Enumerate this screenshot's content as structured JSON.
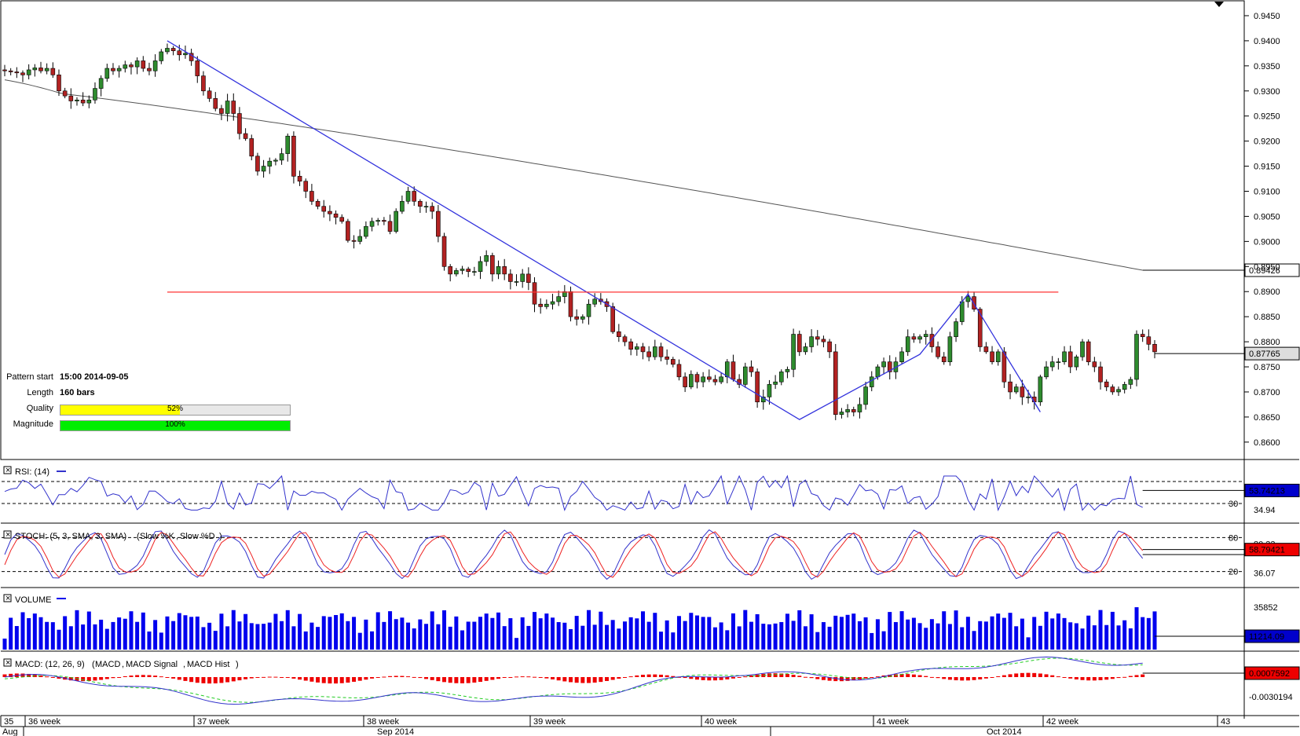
{
  "pattern": {
    "start_label": "Pattern start",
    "start_value": "15:00 2014-09-05",
    "length_label": "Length",
    "length_value": "160 bars",
    "quality_label": "Quality",
    "quality_pct": 52,
    "quality_text": "52%",
    "magnitude_label": "Magnitude",
    "magnitude_pct": 100,
    "magnitude_text": "100%"
  },
  "colors": {
    "candle_up": "#2e8b2e",
    "candle_down": "#b22222",
    "trendline": "#3333dd",
    "resistance": "#ff3333",
    "ma": "#555555",
    "volume": "#0000ee",
    "rsi": "#3333cc",
    "stoch_k": "#3333cc",
    "stoch_d": "#ee2222",
    "macd": "#3333cc",
    "macd_signal": "#22cc22",
    "macd_hist": "#ee0000",
    "quality_fill": "#ffff00",
    "magnitude_fill": "#00ee00"
  },
  "panels": {
    "rsi": {
      "title": "RSI: (14)",
      "value": "53.74213",
      "level_label": "30",
      "level_value": "34.94"
    },
    "stoch": {
      "title": "STOCH: (5, 3, SMA, 3, SMA)",
      "k_label": "Slow %K",
      "d_label": "Slow %D",
      "upper": "80",
      "lower": "20",
      "upper_value": "80.33",
      "lower_value": "36.07",
      "value": "58.79421"
    },
    "volume": {
      "title": "VOLUME",
      "max_label": "35852",
      "value": "11214.09"
    },
    "macd": {
      "title": "MACD: (12, 26, 9)",
      "macd_label": "MACD",
      "signal_label": "MACD Signal",
      "hist_label": "MACD Hist",
      "value": "0.0007592",
      "min_label": "-0.0030194"
    }
  },
  "x_axis": {
    "weeks": [
      "35",
      "36 week",
      "37 week",
      "38 week",
      "39 week",
      "40 week",
      "41 week",
      "42 week",
      "43"
    ],
    "months": [
      "Aug",
      "Sep 2014",
      "Oct 2014"
    ]
  },
  "chart_data": {
    "type": "candlestick",
    "title": "",
    "y_ticks": [
      0.945,
      0.94,
      0.935,
      0.93,
      0.925,
      0.92,
      0.915,
      0.91,
      0.905,
      0.9,
      0.895,
      0.89,
      0.885,
      0.88,
      0.875,
      0.87,
      0.865,
      0.86
    ],
    "y_tick_labels": [
      "0.9450",
      "0.9400",
      "0.9350",
      "0.9300",
      "0.9250",
      "0.9200",
      "0.9150",
      "0.9100",
      "0.9050",
      "0.9000",
      "0.8950",
      "0.8900",
      "0.8850",
      "0.8800",
      "0.8750",
      "0.8700",
      "0.8650",
      "0.8600"
    ],
    "ylim": [
      0.857,
      0.9475
    ],
    "current_price_label": "0.87765",
    "current_price": 0.87765,
    "ma_label": "0.89426",
    "ma_value": 0.89426,
    "resistance": 0.8899,
    "trendline": [
      [
        0.0,
        0.94
      ],
      [
        0.0,
        0.8645
      ]
    ],
    "close": [
      0.934,
      0.9338,
      0.9336,
      0.9332,
      0.9342,
      0.9346,
      0.934,
      0.9345,
      0.9332,
      0.93,
      0.929,
      0.928,
      0.9282,
      0.9276,
      0.9282,
      0.9305,
      0.9325,
      0.9345,
      0.934,
      0.9345,
      0.9352,
      0.9348,
      0.936,
      0.9345,
      0.934,
      0.936,
      0.9378,
      0.9385,
      0.938,
      0.9372,
      0.9375,
      0.936,
      0.933,
      0.93,
      0.9285,
      0.9265,
      0.9255,
      0.928,
      0.9255,
      0.9215,
      0.9205,
      0.917,
      0.914,
      0.915,
      0.916,
      0.9162,
      0.9175,
      0.921,
      0.913,
      0.912,
      0.91,
      0.908,
      0.907,
      0.906,
      0.9055,
      0.9048,
      0.904,
      0.9002,
      0.9,
      0.901,
      0.903,
      0.904,
      0.9042,
      0.904,
      0.902,
      0.906,
      0.908,
      0.91,
      0.908,
      0.907,
      0.907,
      0.906,
      0.901,
      0.895,
      0.8935,
      0.8942,
      0.8945,
      0.894,
      0.894,
      0.896,
      0.8972,
      0.8935,
      0.895,
      0.8935,
      0.892,
      0.892,
      0.8935,
      0.8918,
      0.8875,
      0.887,
      0.8875,
      0.888,
      0.889,
      0.89,
      0.885,
      0.8845,
      0.885,
      0.8875,
      0.8885,
      0.888,
      0.887,
      0.882,
      0.881,
      0.88,
      0.8785,
      0.879,
      0.878,
      0.877,
      0.879,
      0.877,
      0.8765,
      0.8755,
      0.873,
      0.871,
      0.8735,
      0.872,
      0.873,
      0.8725,
      0.872,
      0.873,
      0.876,
      0.8725,
      0.8715,
      0.875,
      0.874,
      0.868,
      0.869,
      0.8715,
      0.872,
      0.874,
      0.8745,
      0.8815,
      0.878,
      0.879,
      0.881,
      0.8805,
      0.88,
      0.878,
      0.8655,
      0.866,
      0.8665,
      0.866,
      0.8675,
      0.871,
      0.873,
      0.875,
      0.876,
      0.874,
      0.876,
      0.878,
      0.881,
      0.8805,
      0.881,
      0.8815,
      0.879,
      0.877,
      0.876,
      0.881,
      0.884,
      0.888,
      0.889,
      0.8865,
      0.879,
      0.878,
      0.876,
      0.878,
      0.872,
      0.87,
      0.871,
      0.869,
      0.869,
      0.868,
      0.873,
      0.875,
      0.876,
      0.876,
      0.878,
      0.875,
      0.877,
      0.88,
      0.876,
      0.875,
      0.872,
      0.871,
      0.87,
      0.8705,
      0.8715,
      0.8725,
      0.8815,
      0.881,
      0.8795,
      0.878
    ]
  }
}
